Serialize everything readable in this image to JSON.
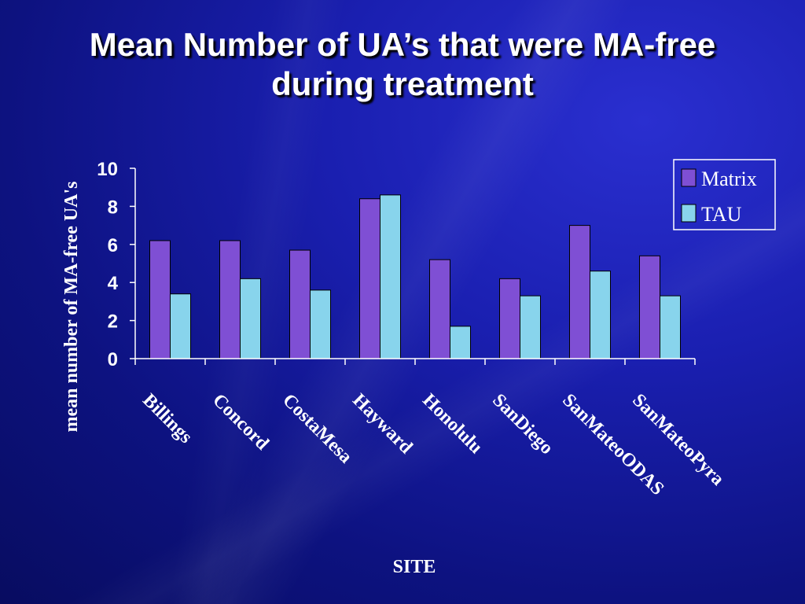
{
  "title_line1": "Mean Number of UA’s that were MA-free",
  "title_line2": "during treatment",
  "chart_data": {
    "type": "bar",
    "title": "Mean Number of UA’s that were MA-free during treatment",
    "xlabel": "SITE",
    "ylabel": "mean number of MA-free UA's",
    "ylim": [
      0,
      10
    ],
    "yticks": [
      "0",
      "2",
      "4",
      "6",
      "8",
      "10"
    ],
    "grid": false,
    "legend_position": "top-right",
    "categories": [
      "Billings",
      "Concord",
      "CostaMesa",
      "Hayward",
      "Honolulu",
      "SanDiego",
      "SanMateoODAS",
      "SanMateoPyra"
    ],
    "series": [
      {
        "name": "Matrix",
        "color": "#7f4fd4",
        "values": [
          6.2,
          6.2,
          5.7,
          8.4,
          5.2,
          4.2,
          7.0,
          5.4
        ]
      },
      {
        "name": "TAU",
        "color": "#88d4ec",
        "values": [
          3.4,
          4.2,
          3.6,
          8.6,
          1.7,
          3.3,
          4.6,
          3.3
        ]
      }
    ]
  }
}
